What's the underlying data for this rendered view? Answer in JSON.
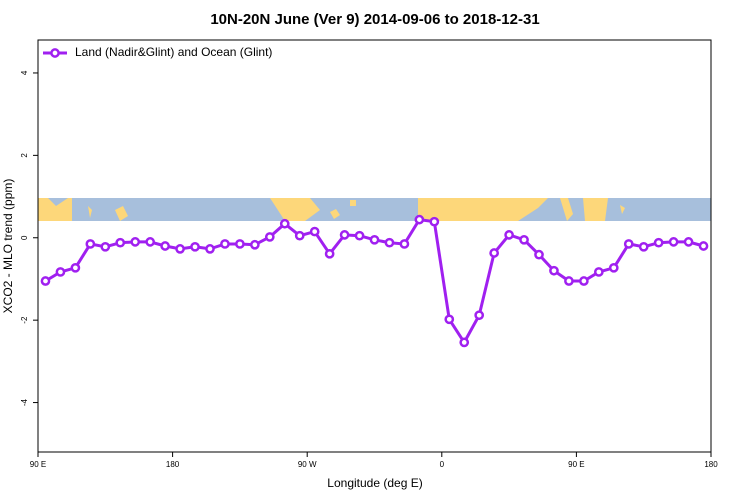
{
  "chart_data": {
    "type": "line",
    "title": "10N-20N June (Ver 9)   2014-09-06 to 2018-12-31",
    "xlabel": "Longitude (deg E)",
    "ylabel": "XCO2 - MLO trend (ppm)",
    "x": [
      95,
      105,
      115,
      125,
      135,
      145,
      155,
      165,
      175,
      185,
      195,
      205,
      215,
      225,
      235,
      245,
      255,
      265,
      275,
      285,
      295,
      305,
      315,
      325,
      335,
      345,
      355,
      365,
      375,
      385,
      395,
      405,
      415,
      425,
      435,
      445,
      455,
      465,
      475,
      485,
      495,
      505,
      515,
      525,
      535
    ],
    "series": [
      {
        "name": "Land (Nadir&Glint) and Ocean (Glint)",
        "color": "#a020f0",
        "values": [
          -1.05,
          -0.83,
          -0.73,
          -0.15,
          -0.22,
          -0.12,
          -0.1,
          -0.1,
          -0.2,
          -0.27,
          -0.22,
          -0.27,
          -0.15,
          -0.15,
          -0.17,
          0.02,
          0.34,
          0.05,
          0.15,
          -0.39,
          0.07,
          0.05,
          -0.05,
          -0.12,
          -0.15,
          0.44,
          0.39,
          -1.98,
          -2.54,
          -1.88,
          -0.37,
          0.07,
          -0.05,
          -0.41,
          -0.8,
          -1.05,
          -1.05,
          -0.83,
          -0.73,
          -0.15,
          -0.22,
          -0.12,
          -0.1,
          -0.1,
          -0.2
        ]
      }
    ],
    "xlim": [
      90,
      540
    ],
    "xticks": [
      {
        "value": 90,
        "label": "90 E"
      },
      180,
      {
        "value": 270,
        "label": "90 W"
      },
      {
        "value": 360,
        "label": "0"
      },
      {
        "value": 450,
        "label": "90 E"
      },
      {
        "value": 540,
        "label": "180"
      }
    ],
    "ylim": [
      -5.2,
      4.8
    ],
    "yticks": [
      -4,
      -2,
      0,
      2,
      4
    ],
    "legend": "top-left"
  }
}
